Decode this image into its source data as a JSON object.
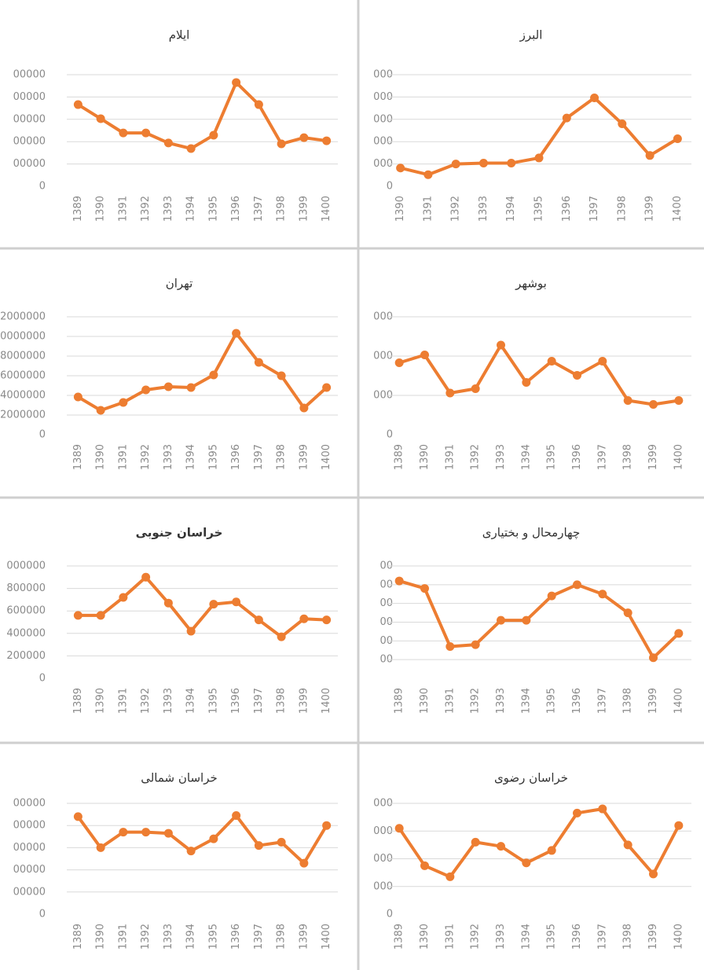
{
  "chart_data": [
    {
      "type": "line",
      "title": "ایلام",
      "color": "#ed7d31",
      "grid": true,
      "categories": [
        "1389",
        "1390",
        "1391",
        "1392",
        "1393",
        "1394",
        "1395",
        "1396",
        "1397",
        "1398",
        "1399",
        "1400"
      ],
      "values": [
        366000,
        303000,
        239000,
        239000,
        194000,
        169000,
        229000,
        465000,
        366000,
        190000,
        218000,
        204000
      ],
      "ylim": [
        0,
        500000
      ],
      "yticks": [
        0,
        {
          "value": 100000,
          "label": "00000"
        },
        {
          "value": 200000,
          "label": "00000"
        },
        {
          "value": 300000,
          "label": "00000"
        },
        {
          "value": 400000,
          "label": "00000"
        },
        {
          "value": 500000,
          "label": "00000"
        }
      ]
    },
    {
      "type": "line",
      "title": "البرز",
      "color": "#ed7d31",
      "grid": true,
      "categories": [
        "1390",
        "1391",
        "1392",
        "1393",
        "1394",
        "1395",
        "1396",
        "1397",
        "1398",
        "1399",
        "1400"
      ],
      "values": [
        820,
        520,
        1000,
        1040,
        1040,
        1270,
        3060,
        3960,
        2800,
        1380,
        2130
      ],
      "ylim": [
        0,
        5000
      ],
      "yticks": [
        0,
        {
          "value": 1000,
          "label": "000"
        },
        {
          "value": 2000,
          "label": "000"
        },
        {
          "value": 3000,
          "label": "000"
        },
        {
          "value": 4000,
          "label": "000"
        },
        {
          "value": 5000,
          "label": "000"
        }
      ]
    },
    {
      "type": "line",
      "title": "تهران",
      "color": "#ed7d31",
      "grid": true,
      "categories": [
        "1389",
        "1390",
        "1391",
        "1392",
        "1393",
        "1394",
        "1395",
        "1396",
        "1397",
        "1398",
        "1399",
        "1400"
      ],
      "values": [
        3840000,
        2480000,
        3280000,
        4560000,
        4880000,
        4800000,
        6080000,
        10320000,
        7360000,
        6000000,
        2720000,
        4800000
      ],
      "ylim": [
        0,
        12000000
      ],
      "yticks": [
        0,
        2000000,
        4000000,
        6000000,
        8000000,
        {
          "value": 10000000,
          "label": "0000000"
        },
        {
          "value": 12000000,
          "label": "2000000"
        }
      ]
    },
    {
      "type": "line",
      "title": "بوشهر",
      "color": "#ed7d31",
      "grid": true,
      "categories": [
        "1389",
        "1390",
        "1391",
        "1392",
        "1393",
        "1394",
        "1395",
        "1396",
        "1397",
        "1398",
        "1399",
        "1400"
      ],
      "values": [
        1830,
        2030,
        1060,
        1170,
        2280,
        1330,
        1870,
        1510,
        1870,
        870,
        770,
        870
      ],
      "ylim": [
        0,
        3000
      ],
      "yticks": [
        0,
        {
          "value": 1000,
          "label": "000"
        },
        {
          "value": 2000,
          "label": "000"
        },
        {
          "value": 3000,
          "label": "000"
        }
      ]
    },
    {
      "type": "line",
      "title": "خراسان جنوبی",
      "color": "#ed7d31",
      "grid": true,
      "categories": [
        "1389",
        "1390",
        "1391",
        "1392",
        "1393",
        "1394",
        "1395",
        "1396",
        "1397",
        "1398",
        "1399",
        "1400"
      ],
      "values": [
        560000,
        560000,
        720000,
        900000,
        670000,
        420000,
        660000,
        680000,
        520000,
        370000,
        530000,
        520000
      ],
      "ylim": [
        0,
        1000000
      ],
      "yticks": [
        0,
        200000,
        400000,
        600000,
        800000,
        {
          "value": 1000000,
          "label": "000000"
        }
      ]
    },
    {
      "type": "line",
      "title": "چهارمحال و بختیاری",
      "color": "#ed7d31",
      "grid": true,
      "categories": [
        "1389",
        "1390",
        "1391",
        "1392",
        "1393",
        "1394",
        "1395",
        "1396",
        "1397",
        "1398",
        "1399",
        "1400"
      ],
      "values": [
        520,
        480,
        170,
        180,
        310,
        310,
        440,
        500,
        450,
        350,
        110,
        240
      ],
      "ylim": [
        0,
        600
      ],
      "yticks": [
        {
          "value": 100,
          "label": "00"
        },
        {
          "value": 200,
          "label": "00"
        },
        {
          "value": 300,
          "label": "00"
        },
        {
          "value": 400,
          "label": "00"
        },
        {
          "value": 500,
          "label": "00"
        },
        {
          "value": 600,
          "label": "00"
        }
      ]
    },
    {
      "type": "line",
      "title": "خراسان شمالی",
      "color": "#ed7d31",
      "grid": true,
      "categories": [
        "1389",
        "1390",
        "1391",
        "1392",
        "1393",
        "1394",
        "1395",
        "1396",
        "1397",
        "1398",
        "1399",
        "1400"
      ],
      "values": [
        440000,
        300000,
        370000,
        370000,
        365000,
        285000,
        340000,
        445000,
        310000,
        325000,
        230000,
        400000
      ],
      "ylim": [
        0,
        500000
      ],
      "yticks": [
        0,
        {
          "value": 100000,
          "label": "00000"
        },
        {
          "value": 200000,
          "label": "00000"
        },
        {
          "value": 300000,
          "label": "00000"
        },
        {
          "value": 400000,
          "label": "00000"
        },
        {
          "value": 500000,
          "label": "00000"
        }
      ]
    },
    {
      "type": "line",
      "title": "خراسان رضوی",
      "color": "#ed7d31",
      "grid": true,
      "categories": [
        "1389",
        "1390",
        "1391",
        "1392",
        "1393",
        "1394",
        "1395",
        "1396",
        "1397",
        "1398",
        "1399",
        "1400"
      ],
      "values": [
        3100,
        1750,
        1350,
        2600,
        2450,
        1850,
        2300,
        3650,
        3800,
        2500,
        1450,
        3200
      ],
      "ylim": [
        0,
        4000
      ],
      "yticks": [
        0,
        {
          "value": 1000,
          "label": "000"
        },
        {
          "value": 2000,
          "label": "000"
        },
        {
          "value": 3000,
          "label": "000"
        },
        {
          "value": 4000,
          "label": "000"
        }
      ]
    }
  ]
}
